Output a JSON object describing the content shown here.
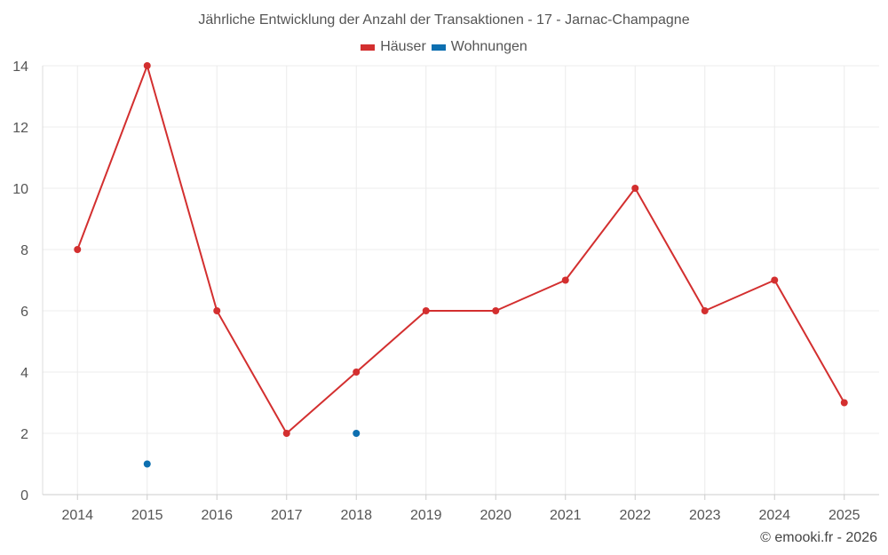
{
  "chart_data": {
    "type": "line",
    "title": "Jährliche Entwicklung der Anzahl der Transaktionen - 17 - Jarnac-Champagne",
    "xlabel": "",
    "ylabel": "",
    "categories": [
      "2014",
      "2015",
      "2016",
      "2017",
      "2018",
      "2019",
      "2020",
      "2021",
      "2022",
      "2023",
      "2024",
      "2025"
    ],
    "ylim": [
      0,
      14
    ],
    "yticks": [
      0,
      2,
      4,
      6,
      8,
      10,
      12,
      14
    ],
    "grid": true,
    "legend_position": "top-center",
    "series": [
      {
        "name": "Häuser",
        "color": "#d32f2f",
        "values": [
          8,
          14,
          6,
          2,
          4,
          6,
          6,
          7,
          10,
          6,
          7,
          3
        ]
      },
      {
        "name": "Wohnungen",
        "color": "#0d6fb0",
        "values": [
          null,
          1,
          null,
          null,
          2,
          null,
          null,
          null,
          null,
          null,
          null,
          null
        ]
      }
    ]
  },
  "credit": "© emooki.fr - 2026"
}
